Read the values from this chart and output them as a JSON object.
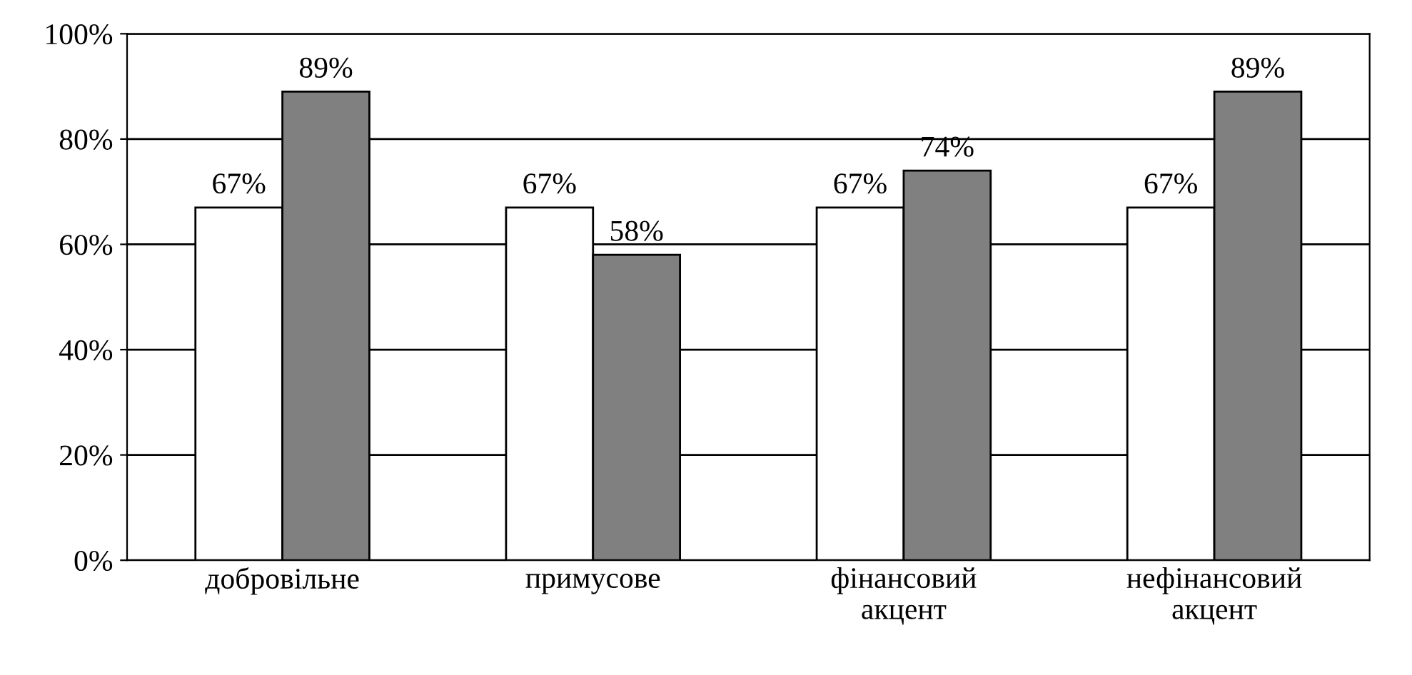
{
  "chart_data": {
    "type": "bar",
    "categories": [
      "добровільне",
      "примусове",
      "фінансовий\nакцент",
      "нефінансовий\nакцент"
    ],
    "series": [
      {
        "color": "#ffffff",
        "values": [
          67,
          67,
          67,
          67
        ],
        "value_labels": [
          "67%",
          "67%",
          "67%",
          "67%"
        ]
      },
      {
        "color": "#808080",
        "values": [
          89,
          58,
          74,
          89
        ],
        "value_labels": [
          "89%",
          "58%",
          "74%",
          "89%"
        ]
      }
    ],
    "ylim": [
      0,
      100
    ],
    "yticks": [
      {
        "value": 0,
        "label": "0%"
      },
      {
        "value": 20,
        "label": "20%"
      },
      {
        "value": 40,
        "label": "40%"
      },
      {
        "value": 60,
        "label": "60%"
      },
      {
        "value": 80,
        "label": "80%"
      },
      {
        "value": 100,
        "label": "100%"
      }
    ],
    "grid": "y"
  }
}
